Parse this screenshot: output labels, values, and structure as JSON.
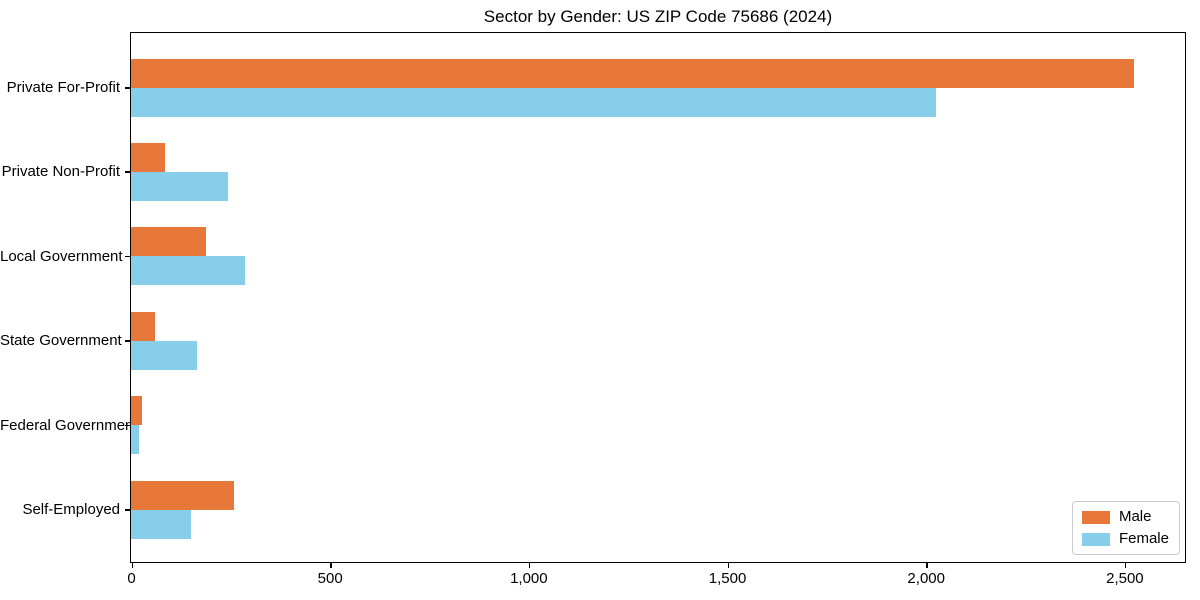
{
  "title": "Sector by Gender: US ZIP Code 75686 (2024)",
  "chart_data": {
    "type": "bar",
    "orientation": "horizontal",
    "title": "Sector by Gender: US ZIP Code 75686 (2024)",
    "xlabel": "",
    "ylabel": "",
    "categories": [
      "Private For-Profit",
      "Private Non-Profit",
      "Local Government",
      "State Government",
      "Federal Government",
      "Self-Employed"
    ],
    "series": [
      {
        "name": "Male",
        "color": "#e8773a",
        "values": [
          2525,
          85,
          190,
          60,
          27,
          258
        ]
      },
      {
        "name": "Female",
        "color": "#87ceeb",
        "values": [
          2027,
          245,
          287,
          165,
          20,
          150
        ]
      }
    ],
    "xlim": [
      0,
      2650
    ],
    "xticks": [
      0,
      500,
      1000,
      1500,
      2000,
      2500
    ],
    "xtick_labels": [
      "0",
      "500",
      "1,000",
      "1,500",
      "2,000",
      "2,500"
    ],
    "grid": false,
    "legend_position": "lower right",
    "colors": {
      "male": "#e8773a",
      "female": "#87ceeb",
      "spine": "#000000",
      "legend_border": "#cccccc",
      "background": "#ffffff",
      "text": "#000000"
    }
  },
  "legend": {
    "items": [
      {
        "label": "Male",
        "color": "#e8773a"
      },
      {
        "label": "Female",
        "color": "#87ceeb"
      }
    ]
  }
}
